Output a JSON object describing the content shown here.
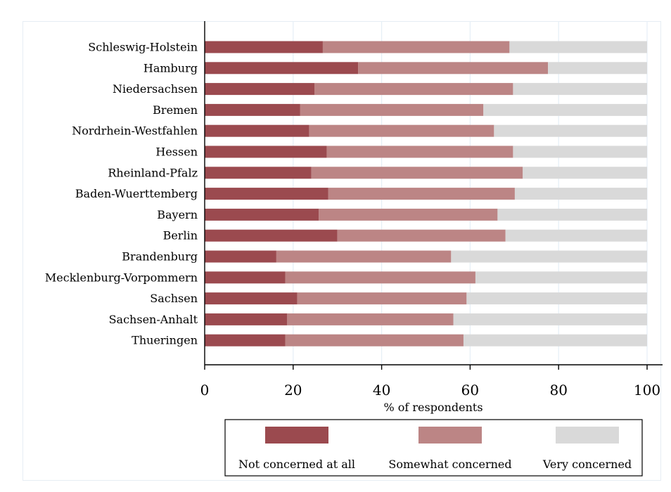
{
  "chart_data": {
    "type": "bar",
    "orientation": "horizontal",
    "stacked": true,
    "categories": [
      "Schleswig-Holstein",
      "Hamburg",
      "Niedersachsen",
      "Bremen",
      "Nordrhein-Westfahlen",
      "Hessen",
      "Rheinland-Pfalz",
      "Baden-Wuerttemberg",
      "Bayern",
      "Berlin",
      "Brandenburg",
      "Mecklenburg-Vorpommern",
      "Sachsen",
      "Sachsen-Anhalt",
      "Thueringen"
    ],
    "series": [
      {
        "name": "Not concerned at all",
        "color": "#9b4a4f",
        "values": [
          26.7,
          34.7,
          24.8,
          21.6,
          23.6,
          27.6,
          24.1,
          27.9,
          25.8,
          30.0,
          16.2,
          18.2,
          20.9,
          18.6,
          18.2
        ]
      },
      {
        "name": "Somewhat concerned",
        "color": "#bc8585",
        "values": [
          42.2,
          42.9,
          44.9,
          41.4,
          41.8,
          42.1,
          47.8,
          42.2,
          40.4,
          38.0,
          39.5,
          43.0,
          38.3,
          37.6,
          40.3
        ]
      },
      {
        "name": "Very concerned",
        "color": "#d9d9d9",
        "values": [
          31.1,
          22.4,
          30.3,
          37.0,
          34.6,
          30.3,
          28.1,
          29.9,
          33.8,
          32.0,
          44.3,
          38.8,
          40.8,
          43.8,
          41.5
        ]
      }
    ],
    "xlabel": "% of respondents",
    "ylabel": "",
    "xlim": [
      0,
      100
    ],
    "x_ticks": [
      "0",
      "20",
      "40",
      "60",
      "80",
      "100"
    ],
    "grid": "vertical",
    "grid_color": "#e5eef6",
    "legend_placement": "bottom",
    "title": ""
  }
}
